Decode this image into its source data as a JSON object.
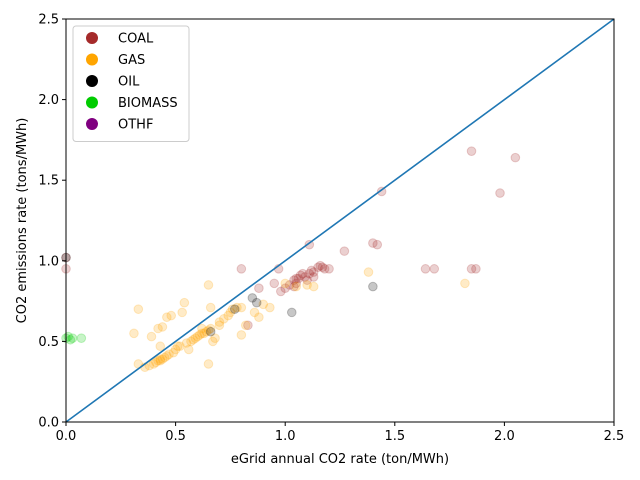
{
  "chart_data": {
    "type": "scatter",
    "title": "",
    "xlabel": "eGrid annual CO2 rate (ton/MWh)",
    "ylabel": "CO2 emissions rate (tons/MWh)",
    "xlim": [
      0,
      2.5
    ],
    "ylim": [
      0,
      2.5
    ],
    "xticks": [
      "0.0",
      "0.5",
      "1.0",
      "1.5",
      "2.0",
      "2.5"
    ],
    "yticks": [
      "0.0",
      "0.5",
      "1.0",
      "1.5",
      "2.0",
      "2.5"
    ],
    "grid": false,
    "legend_position": "top-left",
    "reference_line": {
      "x": [
        0,
        2.5
      ],
      "y": [
        0,
        2.5
      ],
      "color": "#1f77b4"
    },
    "series": [
      {
        "name": "COAL",
        "color": "#a52a2a",
        "points": [
          [
            0.0,
            0.95
          ],
          [
            0.0,
            1.02
          ],
          [
            0.8,
            0.95
          ],
          [
            0.97,
            0.95
          ],
          [
            0.98,
            0.81
          ],
          [
            1.0,
            0.83
          ],
          [
            1.02,
            0.85
          ],
          [
            1.04,
            0.84
          ],
          [
            1.04,
            0.88
          ],
          [
            1.05,
            0.89
          ],
          [
            1.05,
            0.86
          ],
          [
            1.06,
            0.89
          ],
          [
            1.08,
            0.92
          ],
          [
            1.09,
            0.9
          ],
          [
            1.1,
            0.88
          ],
          [
            1.11,
            0.92
          ],
          [
            1.12,
            0.94
          ],
          [
            1.13,
            0.93
          ],
          [
            1.15,
            0.96
          ],
          [
            1.16,
            0.97
          ],
          [
            1.17,
            0.96
          ],
          [
            1.18,
            0.95
          ],
          [
            1.2,
            0.95
          ],
          [
            1.11,
            1.1
          ],
          [
            1.27,
            1.06
          ],
          [
            1.4,
            1.11
          ],
          [
            1.42,
            1.1
          ],
          [
            1.44,
            1.43
          ],
          [
            1.64,
            0.95
          ],
          [
            1.68,
            0.95
          ],
          [
            1.85,
            0.95
          ],
          [
            1.87,
            0.95
          ],
          [
            1.85,
            1.68
          ],
          [
            1.98,
            1.42
          ],
          [
            2.05,
            1.64
          ],
          [
            0.83,
            0.6
          ],
          [
            0.88,
            0.83
          ],
          [
            0.95,
            0.86
          ],
          [
            1.07,
            0.91
          ],
          [
            1.13,
            0.9
          ]
        ]
      },
      {
        "name": "GAS",
        "color": "#ffa500",
        "points": [
          [
            0.31,
            0.55
          ],
          [
            0.33,
            0.36
          ],
          [
            0.33,
            0.7
          ],
          [
            0.36,
            0.34
          ],
          [
            0.38,
            0.35
          ],
          [
            0.39,
            0.53
          ],
          [
            0.4,
            0.36
          ],
          [
            0.41,
            0.37
          ],
          [
            0.42,
            0.38
          ],
          [
            0.43,
            0.38
          ],
          [
            0.43,
            0.39
          ],
          [
            0.44,
            0.39
          ],
          [
            0.45,
            0.4
          ],
          [
            0.46,
            0.41
          ],
          [
            0.47,
            0.42
          ],
          [
            0.42,
            0.58
          ],
          [
            0.44,
            0.59
          ],
          [
            0.43,
            0.47
          ],
          [
            0.46,
            0.65
          ],
          [
            0.48,
            0.66
          ],
          [
            0.49,
            0.43
          ],
          [
            0.5,
            0.45
          ],
          [
            0.51,
            0.47
          ],
          [
            0.52,
            0.47
          ],
          [
            0.53,
            0.68
          ],
          [
            0.54,
            0.74
          ],
          [
            0.55,
            0.49
          ],
          [
            0.56,
            0.45
          ],
          [
            0.57,
            0.5
          ],
          [
            0.58,
            0.51
          ],
          [
            0.59,
            0.52
          ],
          [
            0.6,
            0.53
          ],
          [
            0.61,
            0.54
          ],
          [
            0.62,
            0.55
          ],
          [
            0.63,
            0.55
          ],
          [
            0.64,
            0.56
          ],
          [
            0.65,
            0.57
          ],
          [
            0.66,
            0.58
          ],
          [
            0.65,
            0.36
          ],
          [
            0.65,
            0.85
          ],
          [
            0.66,
            0.71
          ],
          [
            0.67,
            0.5
          ],
          [
            0.68,
            0.52
          ],
          [
            0.7,
            0.62
          ],
          [
            0.72,
            0.64
          ],
          [
            0.74,
            0.66
          ],
          [
            0.75,
            0.68
          ],
          [
            0.76,
            0.7
          ],
          [
            0.78,
            0.71
          ],
          [
            0.8,
            0.54
          ],
          [
            0.8,
            0.71
          ],
          [
            0.82,
            0.6
          ],
          [
            0.86,
            0.68
          ],
          [
            0.88,
            0.65
          ],
          [
            0.9,
            0.73
          ],
          [
            0.93,
            0.71
          ],
          [
            1.0,
            0.86
          ],
          [
            1.05,
            0.84
          ],
          [
            1.1,
            0.85
          ],
          [
            1.13,
            0.84
          ],
          [
            1.38,
            0.93
          ],
          [
            1.82,
            0.86
          ],
          [
            0.62,
            0.58
          ],
          [
            0.7,
            0.6
          ]
        ]
      },
      {
        "name": "OIL",
        "color": "#000000",
        "points": [
          [
            0.0,
            1.02
          ],
          [
            0.66,
            0.56
          ],
          [
            0.77,
            0.7
          ],
          [
            0.85,
            0.77
          ],
          [
            0.87,
            0.74
          ],
          [
            1.03,
            0.68
          ],
          [
            1.4,
            0.84
          ]
        ]
      },
      {
        "name": "BIOMASS",
        "color": "#00cc00",
        "points": [
          [
            0.0,
            0.52
          ],
          [
            0.01,
            0.53
          ],
          [
            0.02,
            0.51
          ],
          [
            0.03,
            0.52
          ],
          [
            0.07,
            0.52
          ]
        ]
      },
      {
        "name": "OTHF",
        "color": "#800080",
        "points": []
      }
    ]
  }
}
